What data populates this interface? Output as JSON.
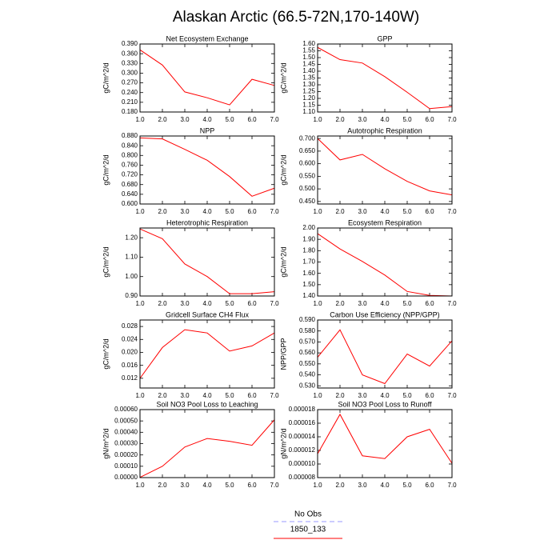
{
  "title": "Alaskan Arctic (66.5-72N,170-140W)",
  "obs_legend": {
    "name": "No Obs",
    "color": "#9999ff"
  },
  "chart_data": [
    {
      "type": "line",
      "title": "Net Ecosystem Exchange",
      "y_label": "gC/m^2/d",
      "x": [
        1,
        2,
        3,
        4,
        5,
        6,
        7
      ],
      "series": [
        {
          "name": "1850_133",
          "color": "#ff0000",
          "values": [
            0.372,
            0.325,
            0.242,
            0.224,
            0.202,
            0.281,
            0.262
          ]
        }
      ],
      "xlim": [
        1,
        7
      ],
      "xticks": [
        {
          "value": 1,
          "label": "1.0"
        },
        {
          "value": 2,
          "label": "2.0"
        },
        {
          "value": 3,
          "label": "3.0"
        },
        {
          "value": 4,
          "label": "4.0"
        },
        {
          "value": 5,
          "label": "5.0"
        },
        {
          "value": 6,
          "label": "6.0"
        },
        {
          "value": 7,
          "label": "7.0"
        }
      ],
      "ylim": [
        0.18,
        0.39
      ],
      "yticks": [
        {
          "value": 0.18,
          "label": "0.180"
        },
        {
          "value": 0.21,
          "label": "0.210"
        },
        {
          "value": 0.24,
          "label": "0.240"
        },
        {
          "value": 0.27,
          "label": "0.270"
        },
        {
          "value": 0.3,
          "label": "0.300"
        },
        {
          "value": 0.33,
          "label": "0.330"
        },
        {
          "value": 0.36,
          "label": "0.360"
        },
        {
          "value": 0.39,
          "label": "0.390"
        }
      ]
    },
    {
      "type": "line",
      "title": "GPP",
      "y_label": "gC/m^2/d",
      "x": [
        1,
        2,
        3,
        4,
        5,
        6,
        7
      ],
      "series": [
        {
          "color": "#ff0000",
          "values": [
            1.575,
            1.485,
            1.46,
            1.36,
            1.245,
            1.125,
            1.14
          ]
        }
      ],
      "xlim": [
        1,
        7
      ],
      "xticks": [
        {
          "value": 1,
          "label": "1.0"
        },
        {
          "value": 2,
          "label": "2.0"
        },
        {
          "value": 3,
          "label": "3.0"
        },
        {
          "value": 4,
          "label": "4.0"
        },
        {
          "value": 5,
          "label": "5.0"
        },
        {
          "value": 6,
          "label": "6.0"
        },
        {
          "value": 7,
          "label": "7.0"
        }
      ],
      "ylim": [
        1.1,
        1.6
      ],
      "yticks": [
        {
          "value": 1.1,
          "label": "1.10"
        },
        {
          "value": 1.15,
          "label": "1.15"
        },
        {
          "value": 1.2,
          "label": "1.20"
        },
        {
          "value": 1.25,
          "label": "1.25"
        },
        {
          "value": 1.3,
          "label": "1.30"
        },
        {
          "value": 1.35,
          "label": "1.35"
        },
        {
          "value": 1.4,
          "label": "1.40"
        },
        {
          "value": 1.45,
          "label": "1.45"
        },
        {
          "value": 1.5,
          "label": "1.50"
        },
        {
          "value": 1.55,
          "label": "1.55"
        },
        {
          "value": 1.6,
          "label": "1.60"
        }
      ]
    },
    {
      "type": "line",
      "title": "NPP",
      "y_label": "gC/m^2/d",
      "x": [
        1,
        2,
        3,
        4,
        5,
        6,
        7
      ],
      "series": [
        {
          "color": "#ff0000",
          "values": [
            0.872,
            0.868,
            0.825,
            0.78,
            0.713,
            0.632,
            0.665
          ]
        }
      ],
      "xlim": [
        1,
        7
      ],
      "xticks": [
        {
          "value": 1,
          "label": "1.0"
        },
        {
          "value": 2,
          "label": "2.0"
        },
        {
          "value": 3,
          "label": "3.0"
        },
        {
          "value": 4,
          "label": "4.0"
        },
        {
          "value": 5,
          "label": "5.0"
        },
        {
          "value": 6,
          "label": "6.0"
        },
        {
          "value": 7,
          "label": "7.0"
        }
      ],
      "ylim": [
        0.6,
        0.88
      ],
      "yticks": [
        {
          "value": 0.6,
          "label": "0.600"
        },
        {
          "value": 0.64,
          "label": "0.640"
        },
        {
          "value": 0.68,
          "label": "0.680"
        },
        {
          "value": 0.72,
          "label": "0.720"
        },
        {
          "value": 0.76,
          "label": "0.760"
        },
        {
          "value": 0.8,
          "label": "0.800"
        },
        {
          "value": 0.84,
          "label": "0.840"
        },
        {
          "value": 0.88,
          "label": "0.880"
        }
      ]
    },
    {
      "type": "line",
      "title": "Autotrophic Respiration",
      "y_label": "gC/m^2/d",
      "x": [
        1,
        2,
        3,
        4,
        5,
        6,
        7
      ],
      "series": [
        {
          "color": "#ff0000",
          "values": [
            0.7,
            0.615,
            0.637,
            0.58,
            0.53,
            0.492,
            0.476
          ]
        }
      ],
      "xlim": [
        1,
        7
      ],
      "xticks": [
        {
          "value": 1,
          "label": "1.0"
        },
        {
          "value": 2,
          "label": "2.0"
        },
        {
          "value": 3,
          "label": "3.0"
        },
        {
          "value": 4,
          "label": "4.0"
        },
        {
          "value": 5,
          "label": "5.0"
        },
        {
          "value": 6,
          "label": "6.0"
        },
        {
          "value": 7,
          "label": "7.0"
        }
      ],
      "ylim": [
        0.44,
        0.71
      ],
      "yticks": [
        {
          "value": 0.45,
          "label": "0.450"
        },
        {
          "value": 0.5,
          "label": "0.500"
        },
        {
          "value": 0.55,
          "label": "0.550"
        },
        {
          "value": 0.6,
          "label": "0.600"
        },
        {
          "value": 0.65,
          "label": "0.650"
        },
        {
          "value": 0.7,
          "label": "0.700"
        }
      ]
    },
    {
      "type": "line",
      "title": "Heterotrophic Respiration",
      "y_label": "gC/m^2/d",
      "x": [
        1,
        2,
        3,
        4,
        5,
        6,
        7
      ],
      "series": [
        {
          "color": "#ff0000",
          "values": [
            1.245,
            1.195,
            1.065,
            1.0,
            0.912,
            0.912,
            0.922
          ]
        }
      ],
      "xlim": [
        1,
        7
      ],
      "xticks": [
        {
          "value": 1,
          "label": "1.0"
        },
        {
          "value": 2,
          "label": "2.0"
        },
        {
          "value": 3,
          "label": "3.0"
        },
        {
          "value": 4,
          "label": "4.0"
        },
        {
          "value": 5,
          "label": "5.0"
        },
        {
          "value": 6,
          "label": "6.0"
        },
        {
          "value": 7,
          "label": "7.0"
        }
      ],
      "ylim": [
        0.9,
        1.25
      ],
      "yticks": [
        {
          "value": 0.9,
          "label": "0.90"
        },
        {
          "value": 1.0,
          "label": "1.00"
        },
        {
          "value": 1.1,
          "label": "1.10"
        },
        {
          "value": 1.2,
          "label": "1.20"
        }
      ]
    },
    {
      "type": "line",
      "title": "Ecosystem Respiration",
      "y_label": "gC/m^2/d",
      "x": [
        1,
        2,
        3,
        4,
        5,
        6,
        7
      ],
      "series": [
        {
          "color": "#ff0000",
          "values": [
            1.95,
            1.815,
            1.705,
            1.585,
            1.44,
            1.405,
            1.4
          ]
        }
      ],
      "xlim": [
        1,
        7
      ],
      "xticks": [
        {
          "value": 1,
          "label": "1.0"
        },
        {
          "value": 2,
          "label": "2.0"
        },
        {
          "value": 3,
          "label": "3.0"
        },
        {
          "value": 4,
          "label": "4.0"
        },
        {
          "value": 5,
          "label": "5.0"
        },
        {
          "value": 6,
          "label": "6.0"
        },
        {
          "value": 7,
          "label": "7.0"
        }
      ],
      "ylim": [
        1.4,
        2.0
      ],
      "yticks": [
        {
          "value": 1.4,
          "label": "1.40"
        },
        {
          "value": 1.5,
          "label": "1.50"
        },
        {
          "value": 1.6,
          "label": "1.60"
        },
        {
          "value": 1.7,
          "label": "1.70"
        },
        {
          "value": 1.8,
          "label": "1.80"
        },
        {
          "value": 1.9,
          "label": "1.90"
        },
        {
          "value": 2.0,
          "label": "2.00"
        }
      ]
    },
    {
      "type": "line",
      "title": "Gridcell Surface CH4 Flux",
      "y_label": "gC/m^2/d",
      "x": [
        1,
        2,
        3,
        4,
        5,
        6,
        7
      ],
      "series": [
        {
          "color": "#ff0000",
          "values": [
            0.012,
            0.0215,
            0.027,
            0.026,
            0.0204,
            0.022,
            0.026
          ]
        }
      ],
      "xlim": [
        1,
        7
      ],
      "xticks": [
        {
          "value": 1,
          "label": "1.0"
        },
        {
          "value": 2,
          "label": "2.0"
        },
        {
          "value": 3,
          "label": "3.0"
        },
        {
          "value": 4,
          "label": "4.0"
        },
        {
          "value": 5,
          "label": "5.0"
        },
        {
          "value": 6,
          "label": "6.0"
        },
        {
          "value": 7,
          "label": "7.0"
        }
      ],
      "ylim": [
        0.009,
        0.03
      ],
      "yticks": [
        0.012,
        0.016,
        {
          "value": 0.02,
          "label": "0.020"
        },
        0.024,
        0.028
      ]
    },
    {
      "type": "line",
      "title": "Carbon Use Efficiency (NPP/GPP)",
      "y_label": "NPP/GPP",
      "x": [
        1,
        2,
        3,
        4,
        5,
        6,
        7
      ],
      "series": [
        {
          "color": "#ff0000",
          "values": [
            0.556,
            0.581,
            0.54,
            0.532,
            0.559,
            0.548,
            0.571
          ]
        }
      ],
      "xlim": [
        1,
        7
      ],
      "xticks": [
        {
          "value": 1,
          "label": "1.0"
        },
        {
          "value": 2,
          "label": "2.0"
        },
        {
          "value": 3,
          "label": "3.0"
        },
        {
          "value": 4,
          "label": "4.0"
        },
        {
          "value": 5,
          "label": "5.0"
        },
        {
          "value": 6,
          "label": "6.0"
        },
        {
          "value": 7,
          "label": "7.0"
        }
      ],
      "ylim": [
        0.528,
        0.59
      ],
      "yticks": [
        {
          "value": 0.53,
          "label": "0.530"
        },
        {
          "value": 0.54,
          "label": "0.540"
        },
        {
          "value": 0.55,
          "label": "0.550"
        },
        {
          "value": 0.56,
          "label": "0.560"
        },
        {
          "value": 0.57,
          "label": "0.570"
        },
        {
          "value": 0.58,
          "label": "0.580"
        },
        {
          "value": 0.59,
          "label": "0.590"
        }
      ]
    },
    {
      "type": "line",
      "title": "Soil NO3 Pool Loss to Leaching",
      "y_label": "gN/m^2/d",
      "x": [
        1,
        2,
        3,
        4,
        5,
        6,
        7
      ],
      "series": [
        {
          "color": "#ff0000",
          "values": [
            2e-06,
            0.0001,
            0.00027,
            0.000345,
            0.00032,
            0.000285,
            0.00051
          ]
        }
      ],
      "xlim": [
        1,
        7
      ],
      "xticks": [
        {
          "value": 1,
          "label": "1.0"
        },
        {
          "value": 2,
          "label": "2.0"
        },
        {
          "value": 3,
          "label": "3.0"
        },
        {
          "value": 4,
          "label": "4.0"
        },
        {
          "value": 5,
          "label": "5.0"
        },
        {
          "value": 6,
          "label": "6.0"
        },
        {
          "value": 7,
          "label": "7.0"
        }
      ],
      "ylim": [
        0,
        0.0006
      ],
      "yticks": [
        {
          "value": 0,
          "label": "0.00000"
        },
        {
          "value": 0.0001,
          "label": "0.00010"
        },
        {
          "value": 0.0002,
          "label": "0.00020"
        },
        {
          "value": 0.0003,
          "label": "0.00030"
        },
        {
          "value": 0.0004,
          "label": "0.00040"
        },
        {
          "value": 0.0005,
          "label": "0.00050"
        },
        {
          "value": 0.0006,
          "label": "0.00060"
        }
      ]
    },
    {
      "type": "line",
      "title": "Soil NO3 Pool Loss to Runoff",
      "y_label": "gN/m^2/d",
      "x": [
        1,
        2,
        3,
        4,
        5,
        6,
        7
      ],
      "series": [
        {
          "color": "#ff0000",
          "values": [
            1.15e-05,
            1.73e-05,
            1.12e-05,
            1.08e-05,
            1.4e-05,
            1.51e-05,
            1.01e-05
          ]
        }
      ],
      "xlim": [
        1,
        7
      ],
      "xticks": [
        {
          "value": 1,
          "label": "1.0"
        },
        {
          "value": 2,
          "label": "2.0"
        },
        {
          "value": 3,
          "label": "3.0"
        },
        {
          "value": 4,
          "label": "4.0"
        },
        {
          "value": 5,
          "label": "5.0"
        },
        {
          "value": 6,
          "label": "6.0"
        },
        {
          "value": 7,
          "label": "7.0"
        }
      ],
      "ylim": [
        8e-06,
        1.8e-05
      ],
      "yticks": [
        {
          "value": 8e-06,
          "label": "0.000008"
        },
        {
          "value": 1e-05,
          "label": "0.000010"
        },
        {
          "value": 1.2e-05,
          "label": "0.000012"
        },
        {
          "value": 1.4e-05,
          "label": "0.000014"
        },
        {
          "value": 1.6e-05,
          "label": "0.000016"
        },
        {
          "value": 1.8e-05,
          "label": "0.000018"
        }
      ]
    }
  ]
}
